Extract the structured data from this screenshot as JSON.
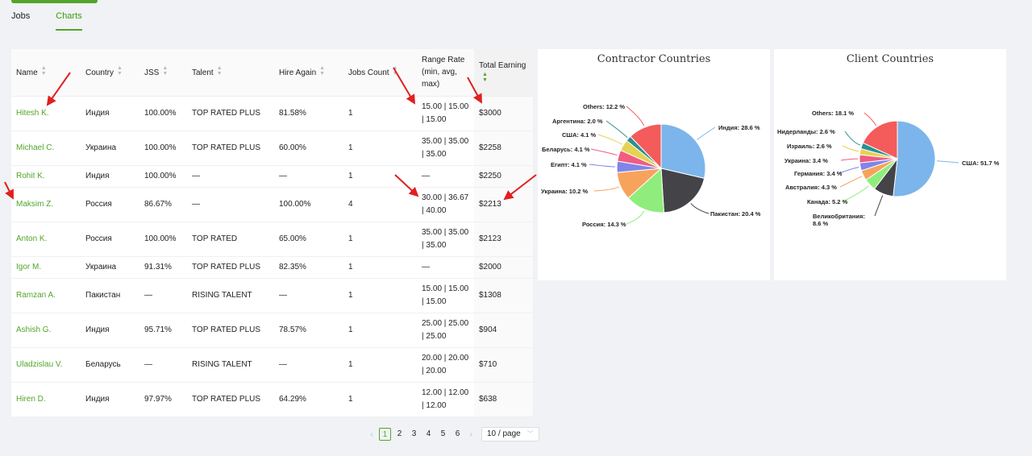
{
  "tabs": [
    {
      "label": "Jobs"
    },
    {
      "label": "Charts"
    }
  ],
  "table": {
    "columns": [
      "Name",
      "Country",
      "JSS",
      "Talent",
      "Hire Again",
      "Jobs Count",
      "Range Rate (min, avg, max)",
      "Total Earning"
    ],
    "rows": [
      {
        "name": "Hitesh K.",
        "country": "Индия",
        "jss": "100.00%",
        "talent": "TOP RATED PLUS",
        "hire": "81.58%",
        "jobs": "1",
        "r1": "15.00 | 15.00",
        "r2": "| 15.00",
        "earn": "$3000"
      },
      {
        "name": "Michael C.",
        "country": "Украина",
        "jss": "100.00%",
        "talent": "TOP RATED PLUS",
        "hire": "60.00%",
        "jobs": "1",
        "r1": "35.00 | 35.00",
        "r2": "| 35.00",
        "earn": "$2258"
      },
      {
        "name": "Rohit K.",
        "country": "Индия",
        "jss": "100.00%",
        "talent": "—",
        "hire": "—",
        "jobs": "1",
        "r1": "—",
        "r2": "",
        "earn": "$2250"
      },
      {
        "name": "Maksim Z.",
        "country": "Россия",
        "jss": "86.67%",
        "talent": "—",
        "hire": "100.00%",
        "jobs": "4",
        "r1": "30.00 | 36.67",
        "r2": "| 40.00",
        "earn": "$2213"
      },
      {
        "name": "Anton K.",
        "country": "Россия",
        "jss": "100.00%",
        "talent": "TOP RATED",
        "hire": "65.00%",
        "jobs": "1",
        "r1": "35.00 | 35.00",
        "r2": "| 35.00",
        "earn": "$2123"
      },
      {
        "name": "Igor M.",
        "country": "Украина",
        "jss": "91.31%",
        "talent": "TOP RATED PLUS",
        "hire": "82.35%",
        "jobs": "1",
        "r1": "—",
        "r2": "",
        "earn": "$2000"
      },
      {
        "name": "Ramzan A.",
        "country": "Пакистан",
        "jss": "—",
        "talent": "RISING TALENT",
        "hire": "—",
        "jobs": "1",
        "r1": "15.00 | 15.00",
        "r2": "| 15.00",
        "earn": "$1308"
      },
      {
        "name": "Ashish G.",
        "country": "Индия",
        "jss": "95.71%",
        "talent": "TOP RATED PLUS",
        "hire": "78.57%",
        "jobs": "1",
        "r1": "25.00 | 25.00",
        "r2": "| 25.00",
        "earn": "$904"
      },
      {
        "name": "Uladzislau V.",
        "country": "Беларусь",
        "jss": "—",
        "talent": "RISING TALENT",
        "hire": "—",
        "jobs": "1",
        "r1": "20.00 | 20.00",
        "r2": "| 20.00",
        "earn": "$710"
      },
      {
        "name": "Hiren D.",
        "country": "Индия",
        "jss": "97.97%",
        "talent": "TOP RATED PLUS",
        "hire": "64.29%",
        "jobs": "1",
        "r1": "12.00 | 12.00",
        "r2": "| 12.00",
        "earn": "$638"
      }
    ]
  },
  "pagination": {
    "pages": [
      "1",
      "2",
      "3",
      "4",
      "5",
      "6"
    ],
    "current": "1",
    "page_size": "10 / page",
    "prev": "‹",
    "next": "›"
  },
  "chart_data": [
    {
      "type": "pie",
      "title": "Contractor Countries",
      "slices": [
        {
          "label": "Индия",
          "value": 28.6,
          "color": "#7cb5ec"
        },
        {
          "label": "Пакистан",
          "value": 20.4,
          "color": "#434348"
        },
        {
          "label": "Россия",
          "value": 14.3,
          "color": "#90ed7d"
        },
        {
          "label": "Украина",
          "value": 10.2,
          "color": "#f7a35c"
        },
        {
          "label": "Египт",
          "value": 4.1,
          "color": "#8085e9"
        },
        {
          "label": "Беларусь",
          "value": 4.1,
          "color": "#f15c80"
        },
        {
          "label": "США",
          "value": 4.1,
          "color": "#e4d354"
        },
        {
          "label": "Аргентина",
          "value": 2.0,
          "color": "#2b908f"
        },
        {
          "label": "Others",
          "value": 12.2,
          "color": "#f45b5b"
        }
      ]
    },
    {
      "type": "pie",
      "title": "Client Countries",
      "slices": [
        {
          "label": "США",
          "value": 51.7,
          "color": "#7cb5ec"
        },
        {
          "label": "Великобритания",
          "value": 8.6,
          "color": "#434348"
        },
        {
          "label": "Канада",
          "value": 5.2,
          "color": "#90ed7d"
        },
        {
          "label": "Австралия",
          "value": 4.3,
          "color": "#f7a35c"
        },
        {
          "label": "Германия",
          "value": 3.4,
          "color": "#8085e9"
        },
        {
          "label": "Украина",
          "value": 3.4,
          "color": "#f15c80"
        },
        {
          "label": "Израиль",
          "value": 2.6,
          "color": "#e4d354"
        },
        {
          "label": "Нидерланды",
          "value": 2.6,
          "color": "#2b908f"
        },
        {
          "label": "Others",
          "value": 18.1,
          "color": "#f45b5b"
        }
      ]
    }
  ]
}
